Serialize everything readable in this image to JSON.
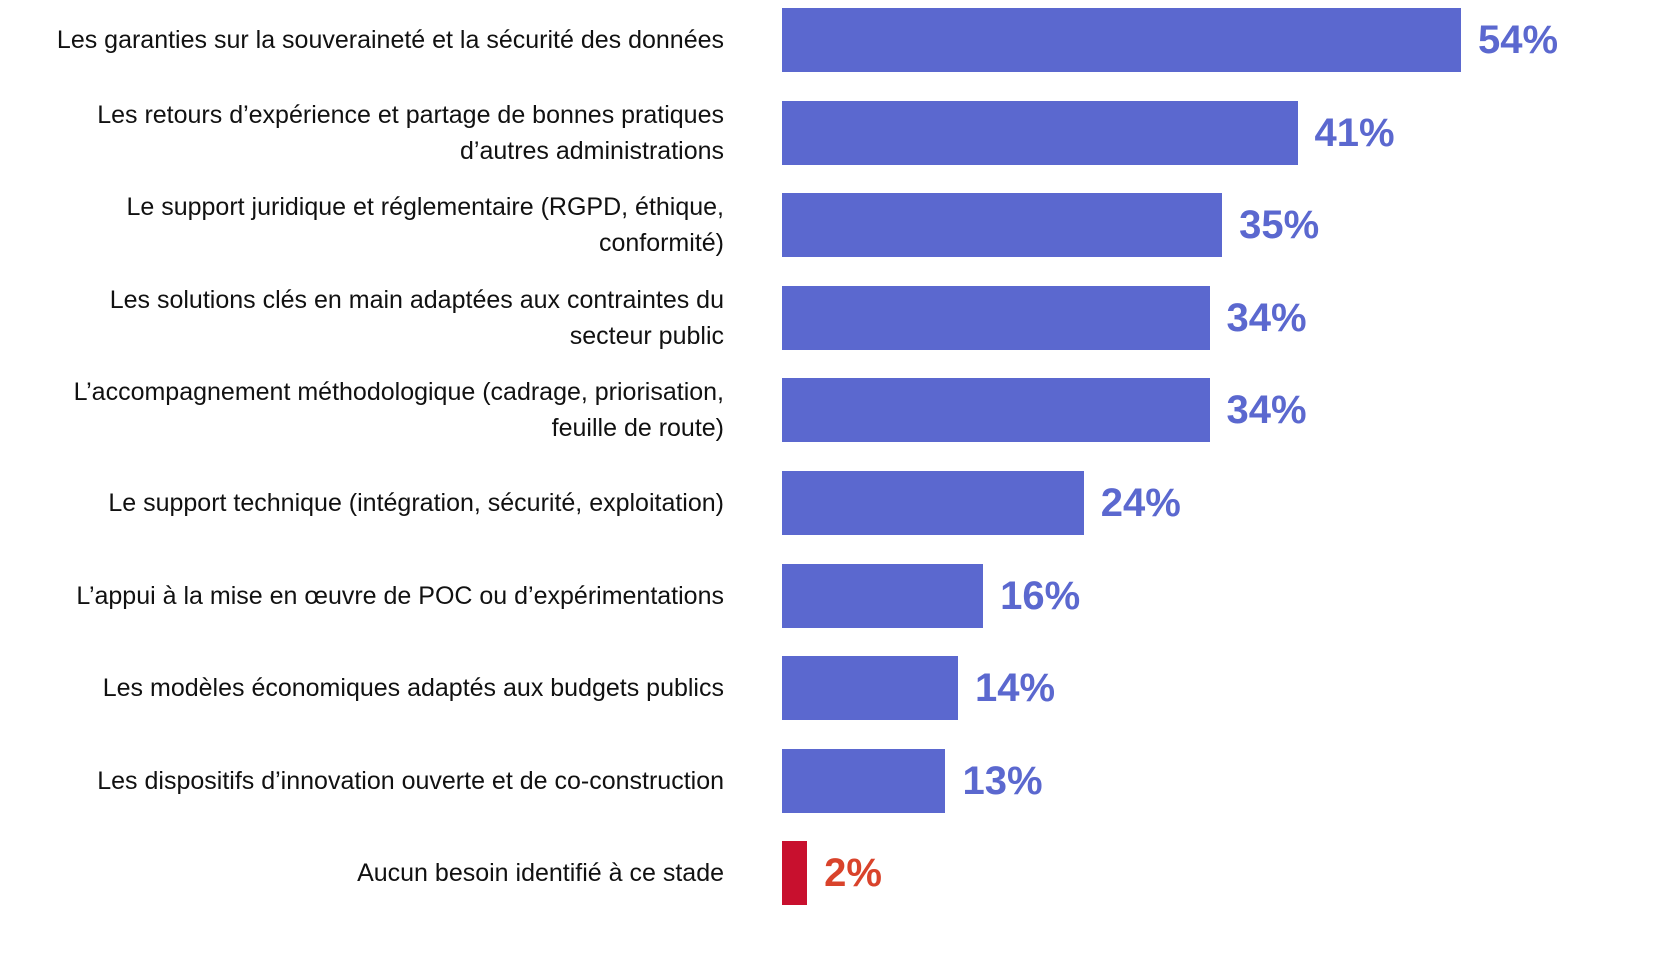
{
  "chart_data": {
    "type": "barh",
    "categories": [
      "Les garanties sur la souveraineté et la sécurité des données",
      "Les retours d’expérience et partage de bonnes pratiques\nd’autres administrations",
      "Le support juridique et réglementaire (RGPD, éthique,\nconformité)",
      "Les solutions clés en main adaptées aux contraintes du\nsecteur public",
      "L’accompagnement méthodologique (cadrage, priorisation,\nfeuille de route)",
      "Le support technique (intégration, sécurité, exploitation)",
      "L’appui à la mise en œuvre de POC ou d’expérimentations",
      "Les modèles économiques adaptés aux budgets publics",
      "Les dispositifs d’innovation ouverte et de co-construction",
      "Aucun besoin identifié à ce stade"
    ],
    "values": [
      54,
      41,
      35,
      34,
      34,
      24,
      16,
      14,
      13,
      2
    ],
    "value_labels": [
      "54%",
      "41%",
      "35%",
      "34%",
      "34%",
      "24%",
      "16%",
      "14%",
      "13%",
      "2%"
    ],
    "colors": [
      "#5b68cf",
      "#5b68cf",
      "#5b68cf",
      "#5b68cf",
      "#5b68cf",
      "#5b68cf",
      "#5b68cf",
      "#5b68cf",
      "#5b68cf",
      "#c8102e"
    ],
    "label_colors": [
      "#5b68cf",
      "#5b68cf",
      "#5b68cf",
      "#5b68cf",
      "#5b68cf",
      "#5b68cf",
      "#5b68cf",
      "#5b68cf",
      "#5b68cf",
      "#d9432b"
    ]
  }
}
